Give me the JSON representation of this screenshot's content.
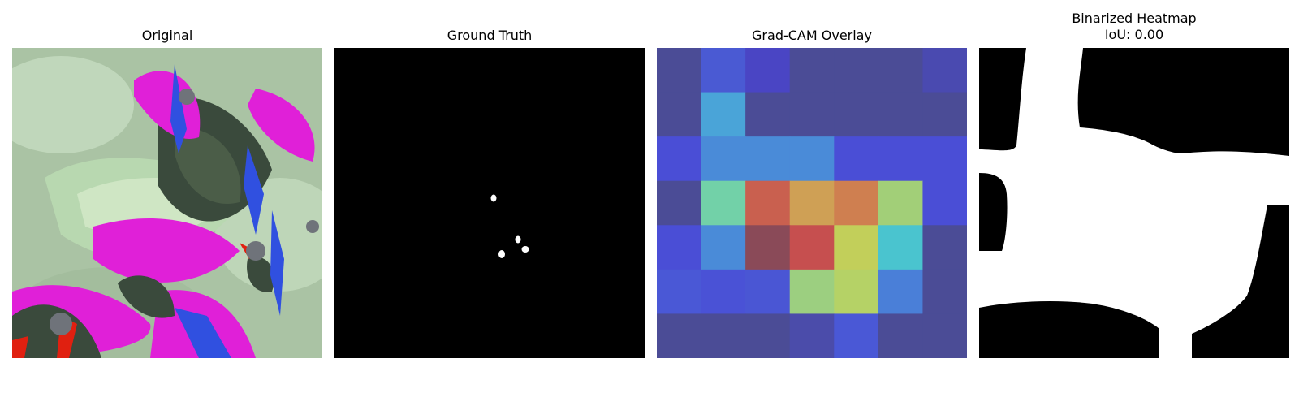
{
  "panels": {
    "original": {
      "title": "Original"
    },
    "ground_truth": {
      "title": "Ground Truth"
    },
    "gradcam": {
      "title": "Grad-CAM Overlay",
      "grid": [
        [
          "#4b4c96",
          "#4a5ad3",
          "#4a45c4",
          "#4b4c96",
          "#4b4c96",
          "#4b4c96",
          "#4a4ab0"
        ],
        [
          "#4b4c96",
          "#4aa4d8",
          "#4b4c96",
          "#4b4c96",
          "#4b4c96",
          "#4b4c96",
          "#4b4c96"
        ],
        [
          "#4a4ed6",
          "#4a8bd8",
          "#4a8bd8",
          "#4a8bd8",
          "#4a4ed6",
          "#4a4ed6",
          "#4a4ed6"
        ],
        [
          "#4b4c96",
          "#72d1a8",
          "#c9604f",
          "#cfa055",
          "#cf7f50",
          "#a2cf78",
          "#4a4ed6"
        ],
        [
          "#4a4ed6",
          "#4a8bd8",
          "#8a4a58",
          "#c64f4f",
          "#c2cf5a",
          "#4ac4cf",
          "#4b4c96"
        ],
        [
          "#4a58d6",
          "#4a52d6",
          "#4a56d4",
          "#9ccf80",
          "#b5d266",
          "#4a7fd8",
          "#4b4c96"
        ],
        [
          "#4b4c96",
          "#4b4c96",
          "#4b4c96",
          "#4b4caa",
          "#4a58d6",
          "#4b4c96",
          "#4b4c96"
        ]
      ]
    },
    "binarized": {
      "title": "Binarized Heatmap\nIoU: 0.00",
      "iou": "0.00"
    }
  },
  "colors": {
    "mask_background": "#000000",
    "mask_foreground": "#ffffff",
    "magenta": "#e020d8",
    "dark_leaf": "#3a4a3c",
    "light_leaf": "#b8d8b0",
    "blue_edge": "#3050e0",
    "red_edge": "#e02010"
  }
}
